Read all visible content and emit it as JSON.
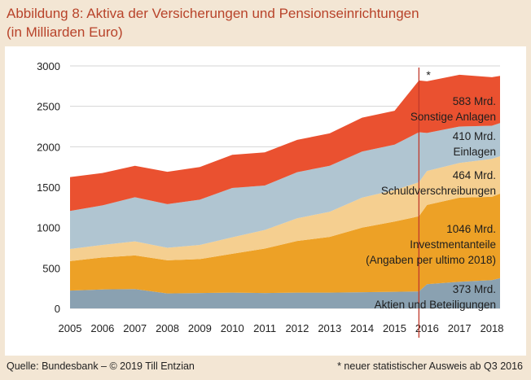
{
  "title_line1": "Abbildung 8: Aktiva der Versicherungen und Pensionseinrichtungen",
  "title_line2": "(in Milliarden Euro)",
  "source": "Quelle: Bundesbank – © 2019 Till Entzian",
  "footnote": "* neuer statistischer Ausweis ab Q3 2016",
  "marker": "*",
  "colors": {
    "aktien": "#8aa1b1",
    "investment": "#eda126",
    "schuld": "#f5cf90",
    "einlagen": "#b0c5d1",
    "sonstige": "#ea5130",
    "break_line": "#c0392b",
    "panel": "#ffffff",
    "background": "#f3e6d4"
  },
  "chart_data": {
    "type": "area",
    "stacked": true,
    "title": "Abbildung 8: Aktiva der Versicherungen und Pensionseinrichtungen",
    "subtitle": "(in Milliarden Euro)",
    "xlabel": "",
    "ylabel": "",
    "ylim": [
      0,
      3000
    ],
    "xlim": [
      2005,
      2018.25
    ],
    "yticks": [
      0,
      500,
      1000,
      1500,
      2000,
      2500,
      3000
    ],
    "xticks": [
      "2005",
      "2006",
      "2007",
      "2008",
      "2009",
      "2010",
      "2011",
      "2012",
      "2013",
      "2014",
      "2015",
      "2016",
      "2017",
      "2018"
    ],
    "grid": true,
    "break_year": 2015.75,
    "x": [
      2005,
      2006,
      2007,
      2008,
      2009,
      2010,
      2011,
      2012,
      2013,
      2014,
      2015,
      2015.75,
      2016,
      2017,
      2018,
      2018.25
    ],
    "series": [
      {
        "key": "aktien",
        "name": "Aktien und Beteiligungen",
        "values": [
          220,
          235,
          240,
          185,
          190,
          195,
          190,
          195,
          195,
          200,
          205,
          210,
          300,
          330,
          350,
          373
        ]
      },
      {
        "key": "investment",
        "name": "Investmentanteile",
        "values": [
          365,
          395,
          415,
          410,
          420,
          480,
          550,
          640,
          690,
          800,
          870,
          930,
          980,
          1040,
          1030,
          1046
        ]
      },
      {
        "key": "schuld",
        "name": "Schuldverschreibungen",
        "values": [
          150,
          155,
          175,
          155,
          175,
          205,
          230,
          280,
          310,
          370,
          390,
          420,
          420,
          430,
          470,
          464
        ]
      },
      {
        "key": "einlagen",
        "name": "Einlagen",
        "values": [
          470,
          490,
          545,
          540,
          560,
          610,
          550,
          570,
          570,
          570,
          560,
          620,
          470,
          450,
          410,
          410
        ]
      },
      {
        "key": "sonstige",
        "name": "Sonstige Anlagen",
        "values": [
          420,
          400,
          390,
          400,
          405,
          410,
          410,
          400,
          400,
          420,
          420,
          640,
          640,
          640,
          600,
          583
        ]
      }
    ],
    "labels": [
      {
        "value": "583 Mrd.",
        "name": "Sonstige Anlagen"
      },
      {
        "value": "410 Mrd.",
        "name": "Einlagen"
      },
      {
        "value": "464 Mrd.",
        "name": "Schuldverschreibungen"
      },
      {
        "value": "1046 Mrd.",
        "name": "Investmentanteile",
        "extra": "(Angaben per ultimo 2018)"
      },
      {
        "value": "373 Mrd.",
        "name": "Aktien und Beteiligungen"
      }
    ]
  }
}
